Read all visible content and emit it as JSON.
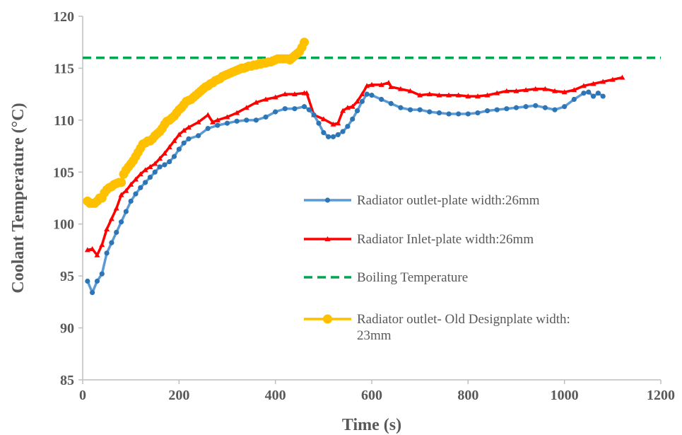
{
  "chart_data": {
    "type": "line",
    "title": "",
    "xlabel": "Time (s)",
    "ylabel": "Coolant Temperature (°C)",
    "xlim": [
      0,
      1200
    ],
    "ylim": [
      85,
      120
    ],
    "xticks": [
      0,
      200,
      400,
      600,
      800,
      1000,
      1200
    ],
    "yticks": [
      85,
      90,
      95,
      100,
      105,
      110,
      115,
      120
    ],
    "grid": false,
    "legend_position": "inside-right",
    "series": [
      {
        "name": "Radiator outlet-plate width:26mm",
        "color": "#2E75B6",
        "marker": "circle",
        "x": [
          10,
          20,
          30,
          40,
          50,
          60,
          70,
          80,
          90,
          100,
          110,
          120,
          130,
          140,
          150,
          160,
          170,
          180,
          190,
          200,
          210,
          220,
          240,
          260,
          280,
          300,
          320,
          340,
          360,
          380,
          400,
          420,
          440,
          460,
          470,
          480,
          490,
          500,
          510,
          520,
          530,
          540,
          550,
          560,
          570,
          580,
          590,
          600,
          620,
          640,
          660,
          680,
          700,
          720,
          740,
          760,
          780,
          800,
          820,
          840,
          860,
          880,
          900,
          920,
          940,
          960,
          980,
          1000,
          1020,
          1040,
          1050,
          1060,
          1070,
          1080
        ],
        "y": [
          94.5,
          93.4,
          94.5,
          95.2,
          97.2,
          98.2,
          99.2,
          100.2,
          101.2,
          102.2,
          102.9,
          103.5,
          104.0,
          104.5,
          105.0,
          105.5,
          105.7,
          106.0,
          106.5,
          107.2,
          107.8,
          108.2,
          108.5,
          109.2,
          109.5,
          109.7,
          109.9,
          110.0,
          110.0,
          110.3,
          110.8,
          111.1,
          111.1,
          111.3,
          111.0,
          110.5,
          109.7,
          108.8,
          108.4,
          108.4,
          108.6,
          108.9,
          109.4,
          110.1,
          110.9,
          111.8,
          112.5,
          112.4,
          112.0,
          111.6,
          111.2,
          111.0,
          111.0,
          110.8,
          110.7,
          110.6,
          110.6,
          110.6,
          110.7,
          110.9,
          111.0,
          111.1,
          111.2,
          111.3,
          111.4,
          111.2,
          111.0,
          111.3,
          112.0,
          112.6,
          112.7,
          112.3,
          112.6,
          112.3
        ]
      },
      {
        "name": "Radiator Inlet-plate width:26mm",
        "color": "#FF0000",
        "marker": "triangle",
        "x": [
          10,
          20,
          30,
          40,
          50,
          60,
          70,
          80,
          90,
          100,
          110,
          120,
          130,
          140,
          150,
          160,
          170,
          180,
          190,
          200,
          210,
          220,
          240,
          260,
          270,
          280,
          300,
          320,
          340,
          360,
          380,
          400,
          420,
          440,
          460,
          465,
          480,
          500,
          520,
          530,
          540,
          550,
          560,
          570,
          580,
          590,
          600,
          620,
          635,
          640,
          660,
          680,
          700,
          720,
          740,
          760,
          780,
          800,
          820,
          840,
          860,
          880,
          900,
          920,
          940,
          960,
          980,
          1000,
          1020,
          1040,
          1060,
          1080,
          1100,
          1120
        ],
        "y": [
          97.5,
          97.6,
          97.0,
          98.0,
          99.5,
          100.5,
          101.5,
          102.8,
          103.2,
          103.8,
          104.3,
          104.8,
          105.2,
          105.5,
          105.8,
          106.3,
          106.8,
          107.4,
          108.0,
          108.6,
          109.0,
          109.3,
          109.8,
          110.5,
          109.8,
          110.0,
          110.3,
          110.7,
          111.2,
          111.7,
          112.0,
          112.2,
          112.5,
          112.5,
          112.6,
          112.6,
          110.5,
          110.1,
          109.6,
          109.7,
          110.9,
          111.2,
          111.3,
          111.8,
          112.5,
          113.3,
          113.4,
          113.4,
          113.6,
          113.2,
          113.0,
          112.8,
          112.4,
          112.5,
          112.4,
          112.4,
          112.4,
          112.3,
          112.3,
          112.4,
          112.6,
          112.8,
          112.8,
          112.9,
          113.0,
          113.0,
          112.8,
          112.7,
          112.9,
          113.3,
          113.5,
          113.7,
          113.9,
          114.1
        ]
      },
      {
        "name": "Boiling Temperature",
        "color": "#00A550",
        "marker": "none",
        "dashed": true,
        "x": [
          0,
          1200
        ],
        "y": [
          116,
          116
        ]
      },
      {
        "name": "Radiator outlet- Old Designplate width: 23mm",
        "color": "#FFC000",
        "marker": "circle",
        "x": [
          10,
          15,
          20,
          25,
          30,
          35,
          40,
          45,
          50,
          55,
          60,
          65,
          70,
          75,
          80,
          85,
          90,
          95,
          100,
          105,
          110,
          115,
          120,
          125,
          130,
          135,
          140,
          145,
          150,
          155,
          160,
          165,
          170,
          175,
          180,
          185,
          190,
          195,
          200,
          205,
          210,
          215,
          220,
          225,
          230,
          235,
          240,
          245,
          250,
          255,
          260,
          265,
          270,
          275,
          280,
          285,
          290,
          295,
          300,
          305,
          310,
          315,
          320,
          325,
          330,
          335,
          340,
          345,
          350,
          355,
          360,
          365,
          370,
          375,
          380,
          385,
          390,
          395,
          400,
          405,
          410,
          415,
          420,
          425,
          430,
          435,
          440,
          445,
          450,
          455,
          460
        ],
        "y": [
          102.2,
          102.0,
          102.0,
          102.0,
          102.2,
          102.5,
          102.5,
          103.0,
          103.3,
          103.5,
          103.6,
          103.8,
          103.9,
          104.0,
          104.0,
          104.8,
          105.2,
          105.5,
          105.8,
          106.1,
          106.5,
          106.9,
          107.3,
          107.7,
          107.8,
          108.0,
          108.0,
          108.2,
          108.5,
          108.7,
          108.9,
          109.2,
          109.6,
          109.9,
          110.0,
          110.2,
          110.4,
          110.7,
          111.0,
          111.2,
          111.5,
          111.8,
          111.9,
          112.0,
          112.2,
          112.4,
          112.6,
          112.8,
          113.0,
          113.2,
          113.3,
          113.5,
          113.6,
          113.8,
          113.9,
          114.0,
          114.2,
          114.3,
          114.4,
          114.5,
          114.6,
          114.7,
          114.8,
          114.9,
          115.0,
          115.0,
          115.1,
          115.2,
          115.2,
          115.3,
          115.3,
          115.4,
          115.4,
          115.5,
          115.5,
          115.6,
          115.6,
          115.7,
          115.8,
          115.9,
          115.9,
          115.9,
          115.9,
          115.9,
          115.8,
          116.0,
          116.2,
          116.4,
          116.6,
          117.0,
          117.5
        ]
      }
    ]
  }
}
